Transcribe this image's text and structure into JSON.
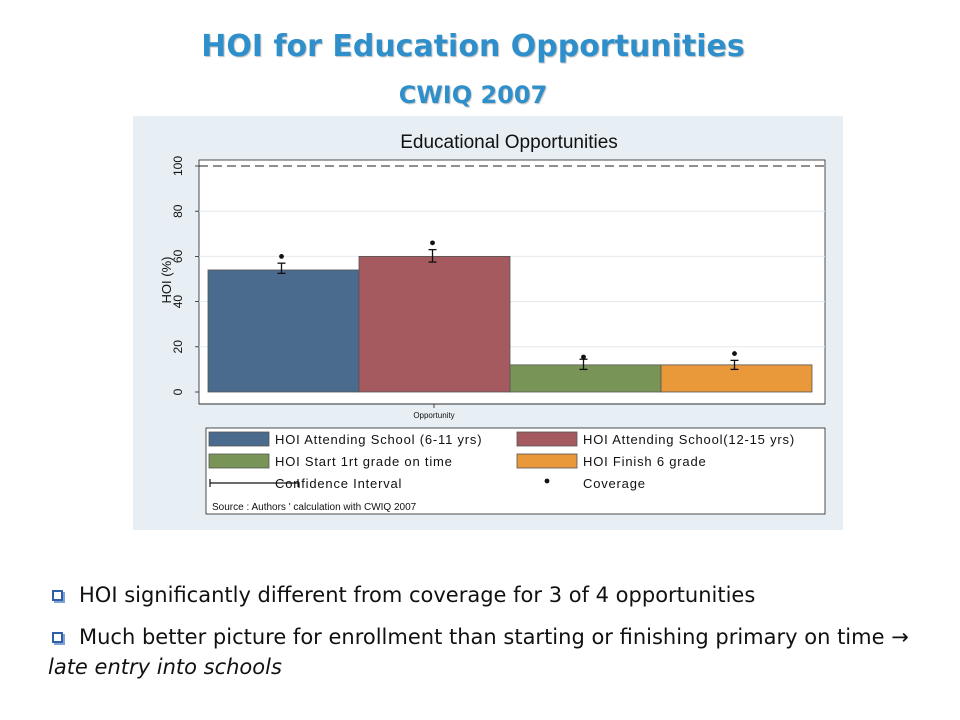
{
  "slide": {
    "title": "HOI for Education Opportunities",
    "subtitle": "CWIQ 2007",
    "bullets": [
      {
        "text": "HOI significantly different from coverage for 3 of 4 opportunities"
      },
      {
        "text_before": "Much better picture for enrollment than starting or finishing primary on time",
        "arrow": "→",
        "text_after": "late entry into schools"
      }
    ]
  },
  "chart_data": {
    "type": "bar",
    "title": "Educational Opportunities",
    "xlabel": "Opportunity",
    "ylabel": "HOI (%)",
    "ylim": [
      0,
      100
    ],
    "yticks": [
      "0",
      "20",
      "40",
      "60",
      "80",
      "100"
    ],
    "reference_line": 100,
    "grid": true,
    "series": [
      {
        "name": "HOI Attending School (6-11 yrs)",
        "value": 54,
        "ci_low": 52.5,
        "ci_high": 57,
        "coverage": 60,
        "color": "#4a6a8e"
      },
      {
        "name": "HOI Attending School(12-15 yrs)",
        "value": 60,
        "ci_low": 57.5,
        "ci_high": 63,
        "coverage": 66,
        "color": "#a45a5f"
      },
      {
        "name": "HOI Start 1rt grade on time",
        "value": 12,
        "ci_low": 10,
        "ci_high": 14.5,
        "coverage": 15.5,
        "color": "#789456"
      },
      {
        "name": "HOI Finish 6 grade",
        "value": 12,
        "ci_low": 10,
        "ci_high": 14,
        "coverage": 17,
        "color": "#e9983a"
      }
    ],
    "legend": {
      "ci_label": "Confidence Interval",
      "coverage_label": "Coverage",
      "placement": "bottom"
    },
    "note": "Source : Authors ' calculation with CWIQ 2007"
  }
}
